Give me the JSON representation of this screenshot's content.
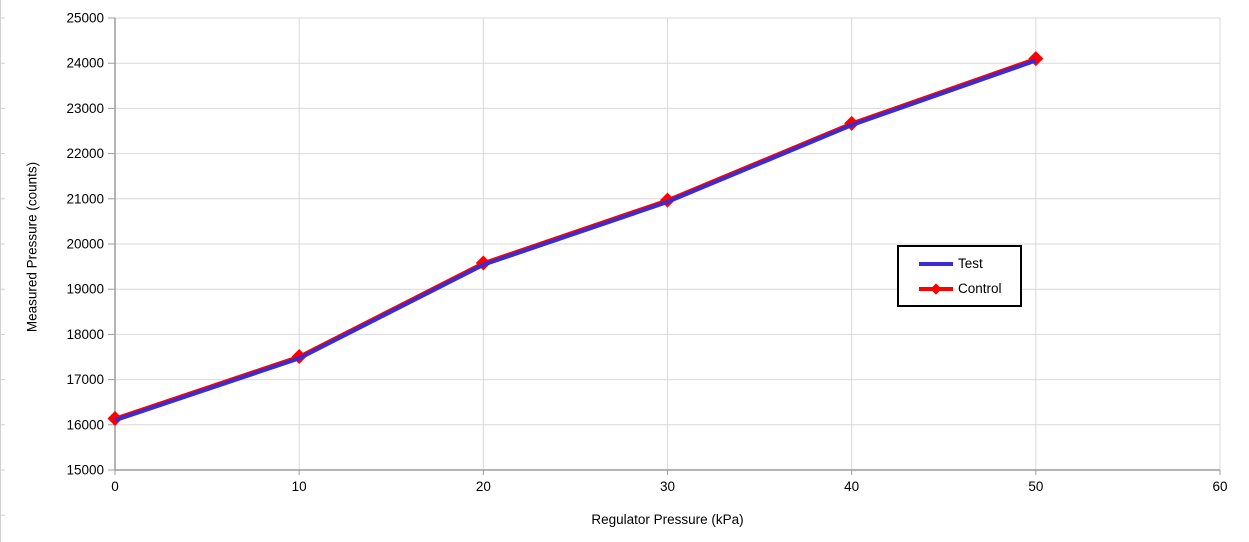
{
  "chart_data": {
    "type": "line",
    "x": [
      0,
      10,
      20,
      30,
      40,
      50
    ],
    "series": [
      {
        "name": "Test",
        "color": "#3C2BD0",
        "marker": "none",
        "line_width": 4,
        "values": [
          16100,
          17470,
          19540,
          20930,
          22630,
          24060
        ]
      },
      {
        "name": "Control",
        "color": "#FF0000",
        "marker": "diamond",
        "line_width": 3.5,
        "values": [
          16140,
          17510,
          19580,
          20970,
          22670,
          24100
        ]
      }
    ],
    "title": "",
    "xlabel": "Regulator Pressure (kPa)",
    "ylabel": "Measured Pressure (counts)",
    "xlim": [
      0,
      60
    ],
    "ylim": [
      15000,
      25000
    ],
    "x_ticks": [
      0,
      10,
      20,
      30,
      40,
      50,
      60
    ],
    "y_ticks": [
      15000,
      16000,
      17000,
      18000,
      19000,
      20000,
      21000,
      22000,
      23000,
      24000,
      25000
    ],
    "grid": true,
    "legend_position": "right-middle"
  },
  "colors": {
    "background": "#ffffff",
    "gridline": "#d9d9d9",
    "axis": "#9c9c9c",
    "edge_artifact": "#d0d0d0",
    "text": "#000000",
    "legend_border": "#000000"
  }
}
